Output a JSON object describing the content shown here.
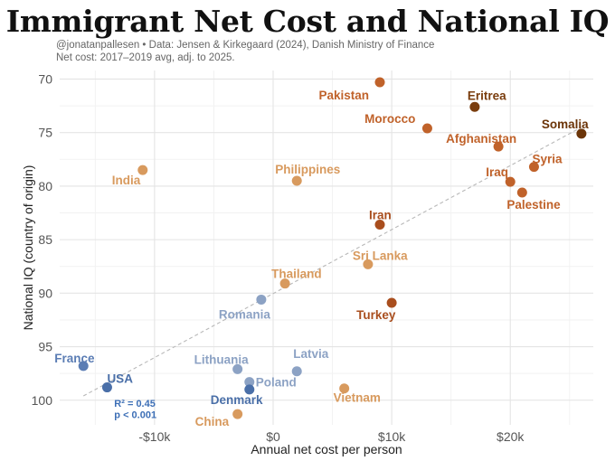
{
  "header": {
    "title": "Immigrant Net Cost and National IQ",
    "source_line": "@jonatanpallesen • Data: Jensen & Kirkegaard (2024), Danish Ministry of Finance",
    "note_line": "Net cost: 2017–2019 avg, adj. to 2025."
  },
  "chart_data": {
    "type": "scatter",
    "title": "Immigrant Net Cost and National IQ",
    "xlabel": "Annual net cost per person",
    "ylabel": "National IQ (country of origin)",
    "xlim": [
      -18000,
      27000
    ],
    "ylim": [
      102.3,
      69.2
    ],
    "y_inverted": true,
    "grid": true,
    "xticks": [
      {
        "value": -10000,
        "label": "-$10k"
      },
      {
        "value": 0,
        "label": "$0"
      },
      {
        "value": 10000,
        "label": "$10k"
      },
      {
        "value": 20000,
        "label": "$20k"
      }
    ],
    "yticks": [
      70,
      75,
      80,
      85,
      90,
      95,
      100
    ],
    "trendline": {
      "x": [
        -16000,
        26000
      ],
      "y": [
        99.6,
        74.5
      ],
      "style": "dashed"
    },
    "annotation": {
      "lines": [
        "R² = 0.45",
        "p < 0.001"
      ],
      "color": "#3d6fb6"
    },
    "points": [
      {
        "label": "Pakistan",
        "x": 9000,
        "y": 70.3,
        "color": "#c0622a"
      },
      {
        "label": "Eritrea",
        "x": 17000,
        "y": 72.6,
        "color": "#7a3d0e"
      },
      {
        "label": "Morocco",
        "x": 13000,
        "y": 74.6,
        "color": "#c0622a"
      },
      {
        "label": "Somalia",
        "x": 26000,
        "y": 75.1,
        "color": "#6b3408"
      },
      {
        "label": "Afghanistan",
        "x": 19000,
        "y": 76.3,
        "color": "#c0622a"
      },
      {
        "label": "Syria",
        "x": 22000,
        "y": 78.2,
        "color": "#c0622a"
      },
      {
        "label": "India",
        "x": -11000,
        "y": 78.5,
        "color": "#d89a5e"
      },
      {
        "label": "Iraq",
        "x": 20000,
        "y": 79.6,
        "color": "#c0622a"
      },
      {
        "label": "Philippines",
        "x": 2000,
        "y": 79.5,
        "color": "#d89a5e"
      },
      {
        "label": "Palestine",
        "x": 21000,
        "y": 80.6,
        "color": "#c0622a"
      },
      {
        "label": "Iran",
        "x": 9000,
        "y": 83.6,
        "color": "#a94e1e"
      },
      {
        "label": "Sri Lanka",
        "x": 8000,
        "y": 87.3,
        "color": "#d89a5e"
      },
      {
        "label": "Thailand",
        "x": 1000,
        "y": 89.1,
        "color": "#d89a5e"
      },
      {
        "label": "Romania",
        "x": -1000,
        "y": 90.6,
        "color": "#8ca2c4"
      },
      {
        "label": "Turkey",
        "x": 10000,
        "y": 90.9,
        "color": "#a94e1e"
      },
      {
        "label": "France",
        "x": -16000,
        "y": 96.8,
        "color": "#5b7db4"
      },
      {
        "label": "Lithuania",
        "x": -3000,
        "y": 97.1,
        "color": "#8ca2c4"
      },
      {
        "label": "Latvia",
        "x": 2000,
        "y": 97.3,
        "color": "#8ca2c4"
      },
      {
        "label": "Poland",
        "x": -2000,
        "y": 98.3,
        "color": "#8ca2c4"
      },
      {
        "label": "USA",
        "x": -14000,
        "y": 98.8,
        "color": "#4a6fa8"
      },
      {
        "label": "Vietnam",
        "x": 6000,
        "y": 98.9,
        "color": "#d89a5e"
      },
      {
        "label": "Denmark",
        "x": -2000,
        "y": 99.0,
        "color": "#4a6fa8"
      },
      {
        "label": "China",
        "x": -3000,
        "y": 101.3,
        "color": "#d89a5e"
      }
    ]
  }
}
